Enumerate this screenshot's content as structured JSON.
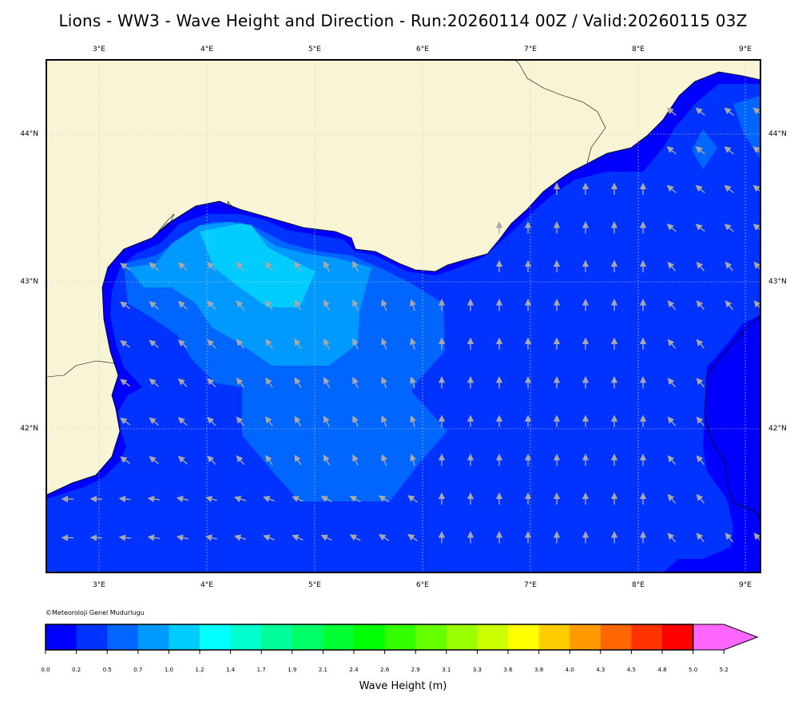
{
  "title": "Lions - WW3 - Wave Height and Direction - Run:20260114 00Z / Valid:20260115 03Z",
  "credit": "©Meteoroloji Genel Mudurlugu",
  "longitude_labels": [
    "3°E",
    "4°E",
    "5°E",
    "6°E",
    "7°E",
    "8°E",
    "9°E"
  ],
  "latitude_labels": [
    "44°N",
    "43°N",
    "42°N"
  ],
  "map": {
    "extent": {
      "lon_min": 2.5,
      "lon_max": 9.15,
      "lat_min": 41.0,
      "lat_max": 44.5
    },
    "land_color": "#f7f5d6",
    "arrow_color": "#a8a8a8"
  },
  "colorbar": {
    "label": "Wave Height (m)",
    "ticks": [
      "0.0",
      "0.2",
      "0.5",
      "0.7",
      "1.0",
      "1.2",
      "1.4",
      "1.7",
      "1.9",
      "2.1",
      "2.4",
      "2.6",
      "2.9",
      "3.1",
      "3.3",
      "3.6",
      "3.8",
      "4.0",
      "4.3",
      "4.5",
      "4.8",
      "5.0",
      "5.2"
    ],
    "colors": [
      "#0000ff",
      "#0033ff",
      "#0066ff",
      "#0099ff",
      "#00ccff",
      "#00ffff",
      "#00ffcc",
      "#00ff99",
      "#00ff66",
      "#00ff33",
      "#00ff00",
      "#33ff00",
      "#66ff00",
      "#99ff00",
      "#ccff00",
      "#ffff00",
      "#ffcc00",
      "#ff9900",
      "#ff6600",
      "#ff3300",
      "#ff0000",
      "#ff66ff"
    ]
  }
}
